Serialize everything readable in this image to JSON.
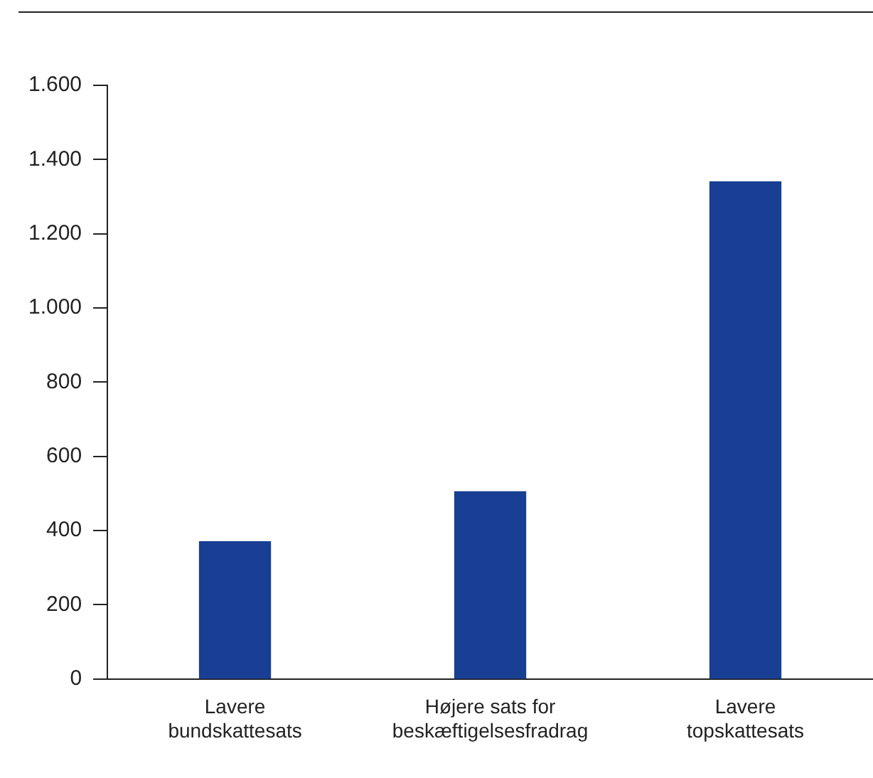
{
  "chart_data": {
    "type": "bar",
    "categories": [
      "Lavere bundskattesats",
      "Højere sats for beskæftigelsesfradrag",
      "Lavere topskattesats"
    ],
    "values": [
      370,
      505,
      1340
    ],
    "color": "#183f93",
    "ylim": [
      0,
      1600
    ],
    "yticks": [
      {
        "value": 0,
        "label": "0"
      },
      {
        "value": 200,
        "label": "200"
      },
      {
        "value": 400,
        "label": "400"
      },
      {
        "value": 600,
        "label": "600"
      },
      {
        "value": 800,
        "label": "800"
      },
      {
        "value": 1000,
        "label": "1.000"
      },
      {
        "value": 1200,
        "label": "1.200"
      },
      {
        "value": 1400,
        "label": "1.400"
      },
      {
        "value": 1600,
        "label": "1.600"
      }
    ],
    "grid": false,
    "legend": false
  }
}
